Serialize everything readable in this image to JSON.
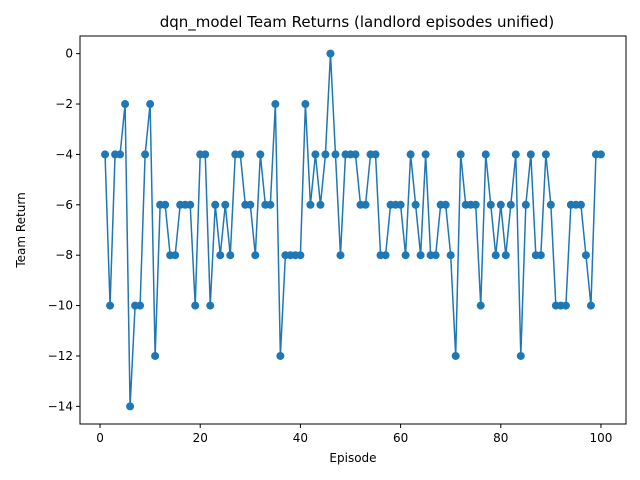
{
  "chart_data": {
    "type": "line",
    "title": "dqn_model Team Returns (landlord episodes unified)",
    "xlabel": "Episode",
    "ylabel": "Team Return",
    "xlim": [
      -4,
      105
    ],
    "ylim": [
      -14.7,
      0.7
    ],
    "xticks": [
      0,
      20,
      40,
      60,
      80,
      100
    ],
    "yticks": [
      0,
      -2,
      -4,
      -6,
      -8,
      -10,
      -12,
      -14
    ],
    "grid": false,
    "series": [
      {
        "color": "#1f77b4",
        "marker": "circle",
        "x": [
          1,
          2,
          3,
          4,
          5,
          6,
          7,
          8,
          9,
          10,
          11,
          12,
          13,
          14,
          15,
          16,
          17,
          18,
          19,
          20,
          21,
          22,
          23,
          24,
          25,
          26,
          27,
          28,
          29,
          30,
          31,
          32,
          33,
          34,
          35,
          36,
          37,
          38,
          39,
          40,
          41,
          42,
          43,
          44,
          45,
          46,
          47,
          48,
          49,
          50,
          51,
          52,
          53,
          54,
          55,
          56,
          57,
          58,
          59,
          60,
          61,
          62,
          63,
          64,
          65,
          66,
          67,
          68,
          69,
          70,
          71,
          72,
          73,
          74,
          75,
          76,
          77,
          78,
          79,
          80,
          81,
          82,
          83,
          84,
          85,
          86,
          87,
          88,
          89,
          90,
          91,
          92,
          93,
          94,
          95,
          96,
          97,
          98,
          99,
          100
        ],
        "y": [
          -4,
          -10,
          -4,
          -4,
          -2,
          -14,
          -10,
          -10,
          -4,
          -2,
          -12,
          -6,
          -6,
          -8,
          -8,
          -6,
          -6,
          -6,
          -10,
          -4,
          -4,
          -10,
          -6,
          -8,
          -6,
          -8,
          -4,
          -4,
          -6,
          -6,
          -8,
          -4,
          -6,
          -6,
          -2,
          -12,
          -8,
          -8,
          -8,
          -8,
          -2,
          -6,
          -4,
          -6,
          -4,
          0,
          -4,
          -8,
          -4,
          -4,
          -4,
          -6,
          -6,
          -4,
          -4,
          -8,
          -8,
          -6,
          -6,
          -6,
          -8,
          -4,
          -6,
          -8,
          -4,
          -8,
          -8,
          -6,
          -6,
          -8,
          -12,
          -4,
          -6,
          -6,
          -6,
          -10,
          -4,
          -6,
          -8,
          -6,
          -8,
          -6,
          -4,
          -12,
          -6,
          -4,
          -8,
          -8,
          -4,
          -6,
          -10,
          -10,
          -10,
          -6,
          -6,
          -6,
          -8,
          -10,
          -4,
          -4
        ]
      }
    ]
  }
}
